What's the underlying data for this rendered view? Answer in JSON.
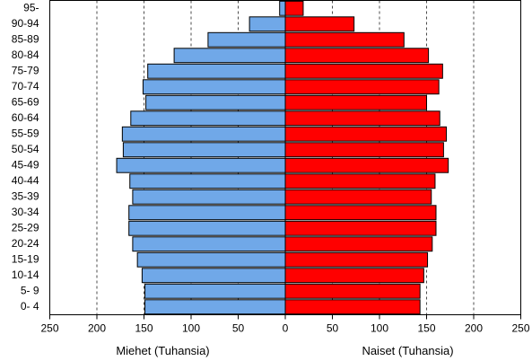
{
  "chart_data": {
    "type": "pyramid",
    "categories": [
      "95-",
      "90-94",
      "85-89",
      "80-84",
      "75-79",
      "70-74",
      "65-69",
      "60-64",
      "55-59",
      "50-54",
      "45-49",
      "40-44",
      "35-39",
      "30-34",
      "25-29",
      "20-24",
      "15-19",
      "10-14",
      "5- 9",
      "0- 4"
    ],
    "series": [
      {
        "name": "Miehet (Tuhansia)",
        "color": "#70a8e8",
        "side": "left",
        "values": [
          6,
          38,
          82,
          118,
          146,
          151,
          148,
          164,
          173,
          172,
          179,
          165,
          162,
          166,
          166,
          162,
          157,
          152,
          149,
          149
        ]
      },
      {
        "name": "Naiset (Tuhansia)",
        "color": "#ff0000",
        "side": "right",
        "values": [
          19,
          73,
          126,
          152,
          167,
          163,
          150,
          164,
          171,
          168,
          173,
          159,
          155,
          160,
          160,
          156,
          151,
          147,
          143,
          143
        ]
      }
    ],
    "xlim": [
      -250,
      250
    ],
    "xticks": [
      {
        "value": -250,
        "label": "250"
      },
      {
        "value": -200,
        "label": "200"
      },
      {
        "value": -150,
        "label": "150"
      },
      {
        "value": -100,
        "label": "100"
      },
      {
        "value": -50,
        "label": "50"
      },
      0,
      50,
      100,
      150,
      200,
      250
    ],
    "grid": true
  }
}
